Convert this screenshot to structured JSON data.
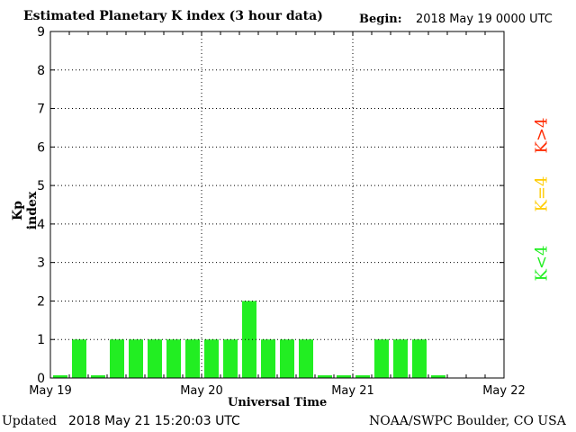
{
  "header": {
    "title": "Estimated Planetary K index (3 hour data)",
    "begin_label": "Begin:",
    "begin_value": "2018 May 19 0000 UTC"
  },
  "footer": {
    "updated_label": "Updated",
    "updated_value": "2018 May 21 15:20:03 UTC",
    "credit": "NOAA/SWPC Boulder, CO USA"
  },
  "legend": {
    "high": {
      "label": "K>4",
      "color": "#ff2a00"
    },
    "mid": {
      "label": "K=4",
      "color": "#ffcc00"
    },
    "low": {
      "label": "K<4",
      "color": "#22ee22"
    }
  },
  "chart_data": {
    "type": "bar",
    "title": "Estimated Planetary K index (3 hour data)",
    "xlabel": "Universal Time",
    "ylabel": "Kp index",
    "ylim": [
      0,
      9
    ],
    "yticks": [
      "0",
      "1",
      "2",
      "3",
      "4",
      "5",
      "6",
      "7",
      "8",
      "9"
    ],
    "xticks": [
      "May 19",
      "May 20",
      "May 21",
      "May 22"
    ],
    "interval_hours": 3,
    "grid": true,
    "bar_color": "#22ee22",
    "values": [
      0.07,
      1,
      0.07,
      1,
      1,
      1,
      1,
      1,
      1,
      1,
      2,
      1,
      1,
      1,
      0.07,
      0.07,
      0.07,
      1,
      1,
      1,
      0.07
    ]
  }
}
